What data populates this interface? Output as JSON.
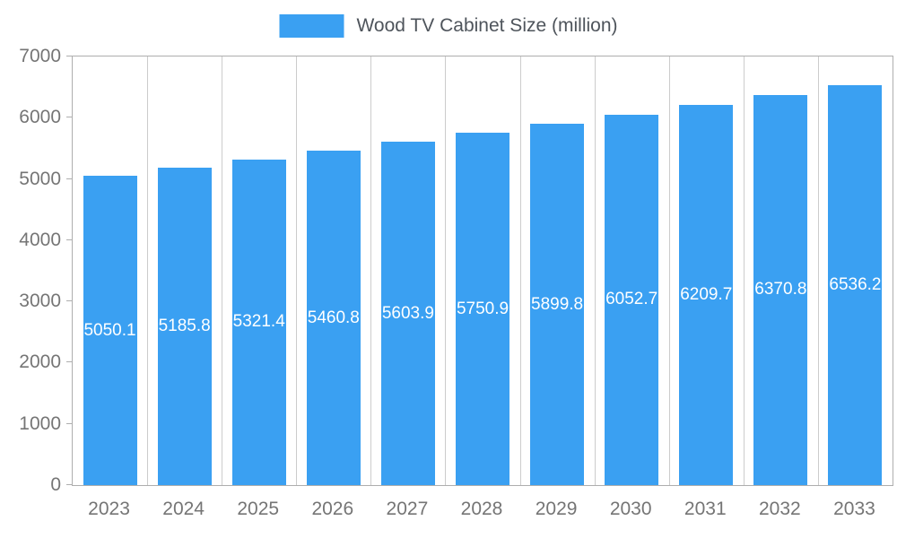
{
  "chart_data": {
    "type": "bar",
    "title": "Wood TV Cabinet Size (million)",
    "categories": [
      "2023",
      "2024",
      "2025",
      "2026",
      "2027",
      "2028",
      "2029",
      "2030",
      "2031",
      "2032",
      "2033"
    ],
    "values": [
      5050.1,
      5185.8,
      5321.4,
      5460.8,
      5603.9,
      5750.9,
      5899.8,
      6052.7,
      6209.7,
      6370.8,
      6536.2
    ],
    "value_labels": [
      "5050.1",
      "5185.8",
      "5321.4",
      "5460.8",
      "5603.9",
      "5750.9",
      "5899.8",
      "6052.7",
      "6209.7",
      "6370.8",
      "6536.2"
    ],
    "xlabel": "",
    "ylabel": "",
    "ylim": [
      0,
      7000
    ],
    "yticks": [
      0,
      1000,
      2000,
      3000,
      4000,
      5000,
      6000,
      7000
    ],
    "grid": "vertical",
    "legend_position": "top-center"
  },
  "colors": {
    "bar": "#3aa0f2",
    "bar_label": "#ffffff",
    "axis_label": "#757575",
    "grid_line": "#cccccc",
    "plot_border": "#aeaeae",
    "legend_text": "#4e545b"
  }
}
